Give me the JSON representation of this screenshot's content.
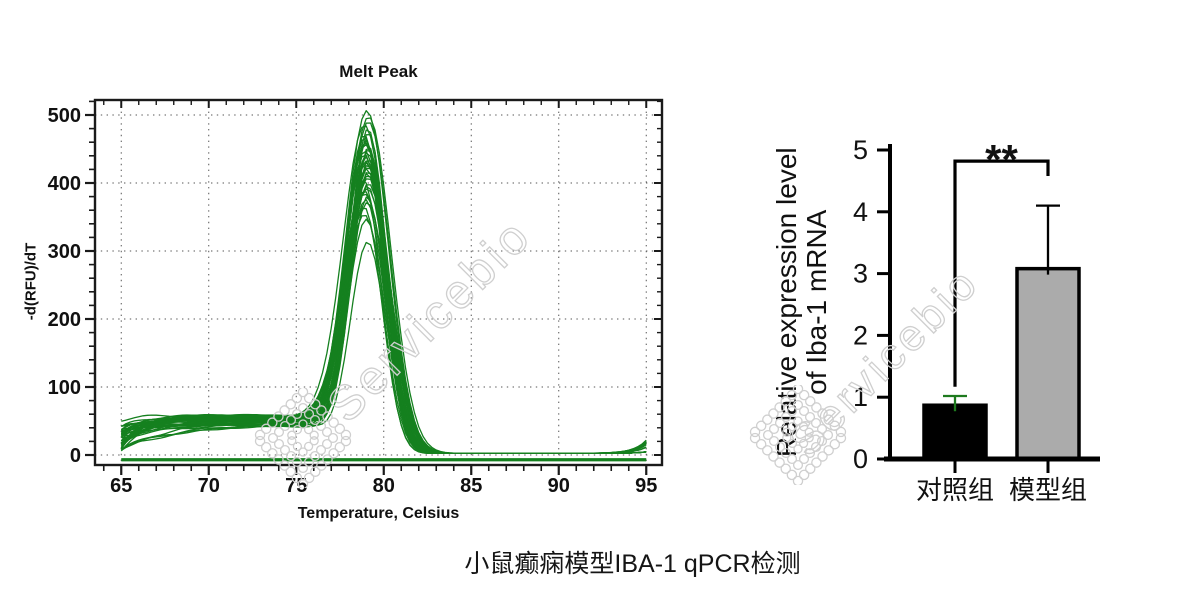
{
  "page": {
    "caption": "小鼠癫痫模型IBA-1 qPCR检测",
    "background_color": "#ffffff"
  },
  "watermark": {
    "text": "Servicebio",
    "color": "#cfcfcf"
  },
  "chart_data": [
    {
      "type": "line",
      "title": "Melt Peak",
      "xlabel": "Temperature, Celsius",
      "ylabel": "-d(RFU)/dT",
      "xlim": [
        63.5,
        95.9
      ],
      "ylim": [
        -14.7,
        522
      ],
      "x_ticks": [
        65,
        70,
        75,
        80,
        85,
        90,
        95
      ],
      "y_ticks": [
        0,
        100,
        200,
        300,
        400,
        500
      ],
      "x_minor_step": 1,
      "y_minor_step": 20,
      "grid_style": "dotted",
      "line_color": "#15801f",
      "n_curves": 40,
      "peak_temperature_c": 79,
      "peak_width_sigma_c": 1.15,
      "peak_heights": [
        505,
        496,
        489,
        483,
        478,
        473,
        469,
        465,
        461,
        458,
        455,
        452,
        449,
        446,
        443,
        440,
        437,
        434,
        431,
        428,
        425,
        422,
        419,
        416,
        413,
        410,
        406,
        402,
        398,
        394,
        390,
        386,
        382,
        378,
        374,
        370,
        363,
        352,
        345,
        312
      ],
      "start_value_range_at_65c": [
        6,
        58
      ],
      "pre_peak_plateau_range": [
        44,
        60
      ],
      "post_peak_level": 2.5,
      "flat_baseline_value": -7,
      "description": "Approximately 40 replicate qPCR melt curves with a single product peak near 79 °C plus one flat baseline trace just below zero"
    },
    {
      "type": "bar",
      "categories": [
        "对照组",
        "模型组"
      ],
      "values": [
        0.87,
        3.08
      ],
      "error_upper_tops": [
        1.02,
        4.1
      ],
      "ylabel_line1": "Relative expression level",
      "ylabel_line2": "of Iba-1 mRNA",
      "ylim": [
        0,
        5
      ],
      "y_ticks": [
        0,
        1,
        2,
        3,
        4,
        5
      ],
      "significance": "**",
      "bar_fill_colors": [
        "#000000",
        "#ababab"
      ],
      "bar_edge_colors": [
        "#000000",
        "#000000"
      ],
      "error_bar_colors": [
        "#1e7a1e",
        "#000000"
      ],
      "bracket": {
        "top_value": 4.82,
        "left_arm_bottom_value": 1.17,
        "right_arm_bottom_value": 4.58
      }
    }
  ]
}
